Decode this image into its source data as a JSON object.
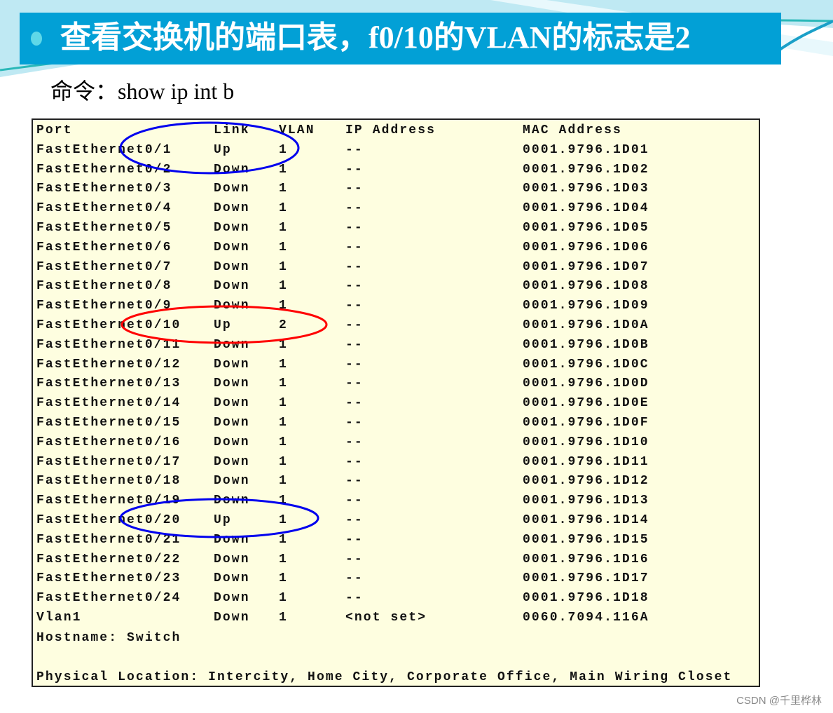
{
  "slide": {
    "title": "查看交换机的端口表，f0/10的VLAN的标志是2",
    "command": "命令：show ip int b",
    "accent_color": "#02a0d6"
  },
  "terminal": {
    "headers": [
      "Port",
      "Link",
      "VLAN",
      "IP Address",
      "MAC Address"
    ],
    "rows": [
      [
        "FastEthernet0/1",
        "Up",
        "1",
        "--",
        "0001.9796.1D01"
      ],
      [
        "FastEthernet0/2",
        "Down",
        "1",
        "--",
        "0001.9796.1D02"
      ],
      [
        "FastEthernet0/3",
        "Down",
        "1",
        "--",
        "0001.9796.1D03"
      ],
      [
        "FastEthernet0/4",
        "Down",
        "1",
        "--",
        "0001.9796.1D04"
      ],
      [
        "FastEthernet0/5",
        "Down",
        "1",
        "--",
        "0001.9796.1D05"
      ],
      [
        "FastEthernet0/6",
        "Down",
        "1",
        "--",
        "0001.9796.1D06"
      ],
      [
        "FastEthernet0/7",
        "Down",
        "1",
        "--",
        "0001.9796.1D07"
      ],
      [
        "FastEthernet0/8",
        "Down",
        "1",
        "--",
        "0001.9796.1D08"
      ],
      [
        "FastEthernet0/9",
        "Down",
        "1",
        "--",
        "0001.9796.1D09"
      ],
      [
        "FastEthernet0/10",
        "Up",
        "2",
        "--",
        "0001.9796.1D0A"
      ],
      [
        "FastEthernet0/11",
        "Down",
        "1",
        "--",
        "0001.9796.1D0B"
      ],
      [
        "FastEthernet0/12",
        "Down",
        "1",
        "--",
        "0001.9796.1D0C"
      ],
      [
        "FastEthernet0/13",
        "Down",
        "1",
        "--",
        "0001.9796.1D0D"
      ],
      [
        "FastEthernet0/14",
        "Down",
        "1",
        "--",
        "0001.9796.1D0E"
      ],
      [
        "FastEthernet0/15",
        "Down",
        "1",
        "--",
        "0001.9796.1D0F"
      ],
      [
        "FastEthernet0/16",
        "Down",
        "1",
        "--",
        "0001.9796.1D10"
      ],
      [
        "FastEthernet0/17",
        "Down",
        "1",
        "--",
        "0001.9796.1D11"
      ],
      [
        "FastEthernet0/18",
        "Down",
        "1",
        "--",
        "0001.9796.1D12"
      ],
      [
        "FastEthernet0/19",
        "Down",
        "1",
        "--",
        "0001.9796.1D13"
      ],
      [
        "FastEthernet0/20",
        "Up",
        "1",
        "--",
        "0001.9796.1D14"
      ],
      [
        "FastEthernet0/21",
        "Down",
        "1",
        "--",
        "0001.9796.1D15"
      ],
      [
        "FastEthernet0/22",
        "Down",
        "1",
        "--",
        "0001.9796.1D16"
      ],
      [
        "FastEthernet0/23",
        "Down",
        "1",
        "--",
        "0001.9796.1D17"
      ],
      [
        "FastEthernet0/24",
        "Down",
        "1",
        "--",
        "0001.9796.1D18"
      ],
      [
        "Vlan1",
        "Down",
        "1",
        "<not set>",
        "0060.7094.116A"
      ]
    ],
    "hostname": "Hostname: Switch",
    "location": "Physical Location: Intercity, Home City, Corporate Office, Main Wiring Closet"
  },
  "annotations": {
    "highlight_colors": {
      "f0/1": "#0000ee",
      "f0/10": "#ff0000",
      "f0/20": "#0000ee"
    }
  },
  "watermark": "CSDN @千里桦林"
}
